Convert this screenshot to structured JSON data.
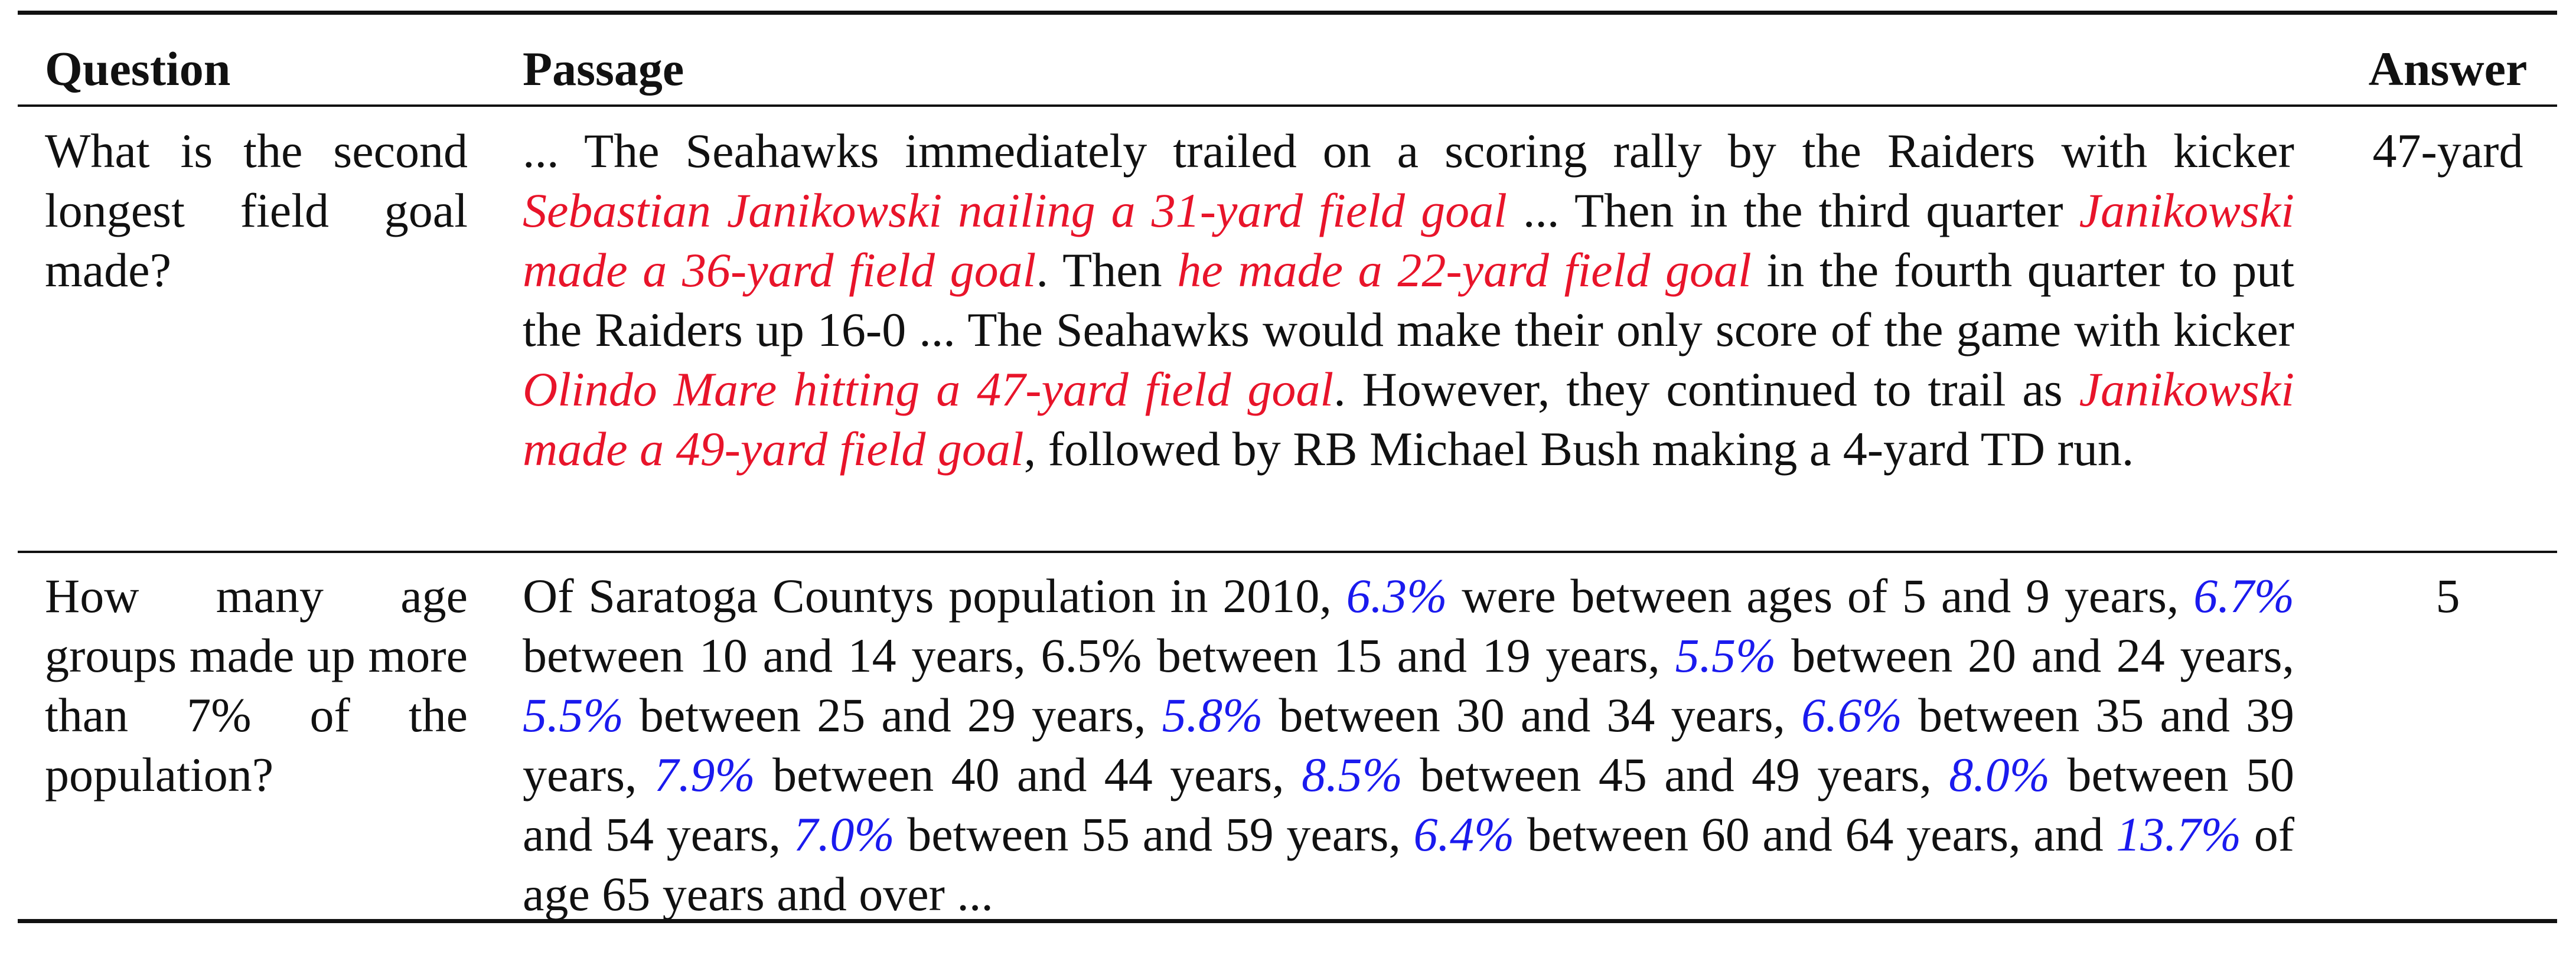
{
  "table": {
    "headers": {
      "question": "Question",
      "passage": "Passage",
      "answer": "Answer"
    },
    "rows": [
      {
        "question": "What is the second longest field goal made?",
        "passage_segments": [
          {
            "text": "... The Seahawks immediately trailed on a scoring rally by the Raiders with kicker ",
            "highlight": "none"
          },
          {
            "text": "Sebastian Janikowski nailing a 31-yard field goal",
            "highlight": "red"
          },
          {
            "text": " ...  Then in the third quarter ",
            "highlight": "none"
          },
          {
            "text": "Janikowski made a 36-yard field goal",
            "highlight": "red"
          },
          {
            "text": ".  Then ",
            "highlight": "none"
          },
          {
            "text": "he made a 22-yard field goal",
            "highlight": "red"
          },
          {
            "text": " in the fourth quarter to put the Raiders up 16-0 ... The Seahawks would make their only score of the game with kicker ",
            "highlight": "none"
          },
          {
            "text": "Olindo Mare hitting a 47-yard field goal",
            "highlight": "red"
          },
          {
            "text": ". However, they continued to trail as ",
            "highlight": "none"
          },
          {
            "text": "Janikowski made a 49-yard field goal",
            "highlight": "red"
          },
          {
            "text": ", followed by RB Michael Bush making a 4-yard TD run.",
            "highlight": "none"
          }
        ],
        "answer": "47-yard"
      },
      {
        "question": "How many age groups made up more than 7% of the population?",
        "passage_segments": [
          {
            "text": "Of Saratoga Countys population in 2010, ",
            "highlight": "none"
          },
          {
            "text": "6.3%",
            "highlight": "blue"
          },
          {
            "text": " were between ages of 5 and 9 years, ",
            "highlight": "none"
          },
          {
            "text": "6.7%",
            "highlight": "blue"
          },
          {
            "text": " between 10 and 14 years, 6.5% between 15 and 19 years, ",
            "highlight": "none"
          },
          {
            "text": "5.5%",
            "highlight": "blue"
          },
          {
            "text": " between 20 and 24 years, ",
            "highlight": "none"
          },
          {
            "text": "5.5%",
            "highlight": "blue"
          },
          {
            "text": " between 25 and 29 years, ",
            "highlight": "none"
          },
          {
            "text": "5.8%",
            "highlight": "blue"
          },
          {
            "text": " between 30 and 34 years, ",
            "highlight": "none"
          },
          {
            "text": "6.6%",
            "highlight": "blue"
          },
          {
            "text": " between 35 and 39 years, ",
            "highlight": "none"
          },
          {
            "text": "7.9%",
            "highlight": "blue"
          },
          {
            "text": " between 40 and 44 years, ",
            "highlight": "none"
          },
          {
            "text": "8.5%",
            "highlight": "blue"
          },
          {
            "text": " between 45 and 49 years, ",
            "highlight": "none"
          },
          {
            "text": "8.0%",
            "highlight": "blue"
          },
          {
            "text": " between 50 and 54 years, ",
            "highlight": "none"
          },
          {
            "text": "7.0%",
            "highlight": "blue"
          },
          {
            "text": " between 55 and 59 years, ",
            "highlight": "none"
          },
          {
            "text": "6.4%",
            "highlight": "blue"
          },
          {
            "text": " between 60 and 64 years, and ",
            "highlight": "none"
          },
          {
            "text": "13.7%",
            "highlight": "blue"
          },
          {
            "text": " of age 65 years and over ...",
            "highlight": "none"
          }
        ],
        "answer": "5"
      }
    ]
  },
  "colors": {
    "red_highlight": "#e8142a",
    "blue_highlight": "#1a1aee",
    "text": "#111111"
  }
}
